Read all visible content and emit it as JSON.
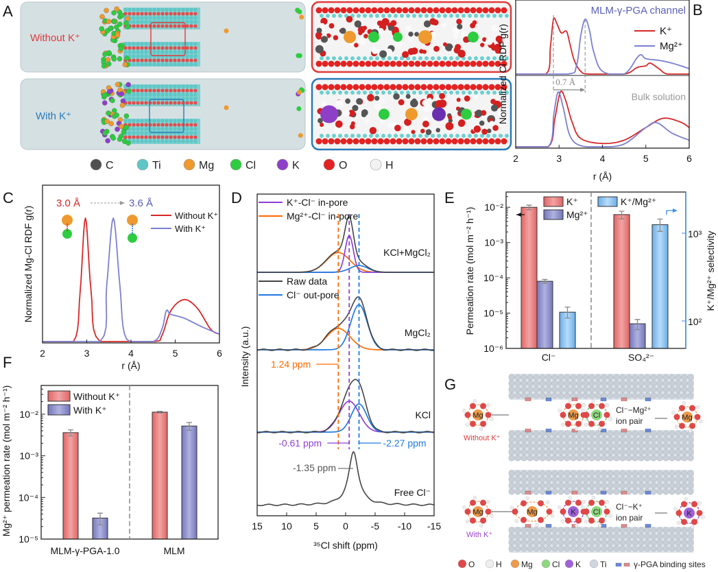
{
  "panel_labels": {
    "a": "A",
    "b": "B",
    "c": "C",
    "d": "D",
    "e": "E",
    "f": "F",
    "g": "G"
  },
  "panel_a": {
    "row_labels": [
      "Without K⁺",
      "With K⁺"
    ],
    "row_colors": [
      "#e03a3a",
      "#2a7ab8"
    ],
    "legend": [
      {
        "label": "C",
        "color": "#505050"
      },
      {
        "label": "Ti",
        "color": "#5ec6c6"
      },
      {
        "label": "Mg",
        "color": "#ee9a2e"
      },
      {
        "label": "Cl",
        "color": "#2ecc40"
      },
      {
        "label": "K",
        "color": "#8e3fc8"
      },
      {
        "label": "O",
        "color": "#e32222"
      },
      {
        "label": "H",
        "color": "#f2f2f2"
      }
    ]
  },
  "chart_data": [
    {
      "id": "B",
      "type": "line",
      "ylabel": "Normalized Cl RDF g(r)",
      "xlabel": "r (Å)",
      "xlim": [
        2,
        6
      ],
      "xticks": [
        "2",
        "3",
        "4",
        "5",
        "6"
      ],
      "annotations": {
        "top": "MLM-γ-PGA channel",
        "bottom": "Bulk solution",
        "shift": "0.7 Å"
      },
      "legend_position": "top-right",
      "series": [
        {
          "name": "K⁺",
          "color": "#d62728",
          "panel": "channel",
          "x": [
            2,
            2.7,
            2.8,
            2.87,
            2.95,
            3.05,
            3.17,
            3.25,
            3.35,
            3.5,
            3.7,
            4.5,
            4.8,
            5.0,
            5.1,
            5.3,
            5.5,
            6
          ],
          "y": [
            0,
            0,
            0.5,
            1.0,
            0.92,
            0.75,
            0.78,
            0.55,
            0.25,
            0.05,
            0,
            0,
            0.12,
            0.15,
            0.2,
            0.1,
            0,
            0
          ]
        },
        {
          "name": "Mg²⁺",
          "color": "#7b7fd0",
          "panel": "channel",
          "x": [
            2,
            3.2,
            3.4,
            3.5,
            3.6,
            3.7,
            3.8,
            4.0,
            4.5,
            4.8,
            4.9,
            5.0,
            5.3,
            5.6,
            6
          ],
          "y": [
            0,
            0,
            0.15,
            0.7,
            1.0,
            0.8,
            0.4,
            0.05,
            0,
            0.3,
            0.35,
            0.28,
            0.25,
            0.2,
            0.1
          ]
        },
        {
          "name": "K⁺",
          "color": "#d62728",
          "panel": "bulk",
          "x": [
            2,
            2.75,
            2.9,
            3.03,
            3.15,
            3.3,
            3.5,
            4.0,
            4.5,
            5.0,
            5.4,
            5.8,
            6
          ],
          "y": [
            0,
            0,
            0.5,
            1.0,
            0.85,
            0.45,
            0.15,
            0.06,
            0.12,
            0.35,
            0.52,
            0.45,
            0.35
          ]
        },
        {
          "name": "Mg²⁺",
          "color": "#7b7fd0",
          "panel": "bulk",
          "x": [
            2,
            2.75,
            2.88,
            2.98,
            3.1,
            3.25,
            3.5,
            4.0,
            4.5,
            5.0,
            5.25,
            5.6,
            6
          ],
          "y": [
            0,
            0,
            0.6,
            1.0,
            0.7,
            0.2,
            0.02,
            0,
            0.05,
            0.35,
            0.44,
            0.25,
            0.12
          ]
        }
      ]
    },
    {
      "id": "C",
      "type": "line",
      "ylabel": "Normalized Mg-Cl RDF g(r)",
      "xlabel": "r (Å)",
      "xlim": [
        2,
        6
      ],
      "xticks": [
        "2",
        "3",
        "4",
        "5",
        "6"
      ],
      "annotations": {
        "peak1": "3.0 Å",
        "peak2": "3.6 Å"
      },
      "legend_position": "top-right",
      "series": [
        {
          "name": "Without K⁺",
          "color": "#d62728",
          "x": [
            2,
            2.7,
            2.85,
            2.97,
            3.1,
            3.3,
            4.5,
            4.7,
            4.9,
            5.2,
            5.5,
            5.8,
            6
          ],
          "y": [
            0,
            0,
            0.4,
            1.0,
            0.4,
            0,
            0,
            0.05,
            0.25,
            0.34,
            0.27,
            0.1,
            0.06
          ]
        },
        {
          "name": "With K⁺",
          "color": "#7b7fd0",
          "x": [
            2,
            3.3,
            3.45,
            3.6,
            3.75,
            3.9,
            4.5,
            4.7,
            4.8,
            4.9,
            5.2,
            5.6,
            6
          ],
          "y": [
            0,
            0,
            0.45,
            1.0,
            0.45,
            0.02,
            0,
            0.1,
            0.25,
            0.22,
            0.19,
            0.12,
            0.06
          ]
        }
      ]
    },
    {
      "id": "D",
      "type": "line",
      "ylabel": "Intensity (a.u.)",
      "xlabel": "³⁵Cl shift (ppm)",
      "xlim": [
        15,
        -15
      ],
      "xticks": [
        "15",
        "10",
        "5",
        "0",
        "-5",
        "-10",
        "-15"
      ],
      "legend": [
        {
          "name": "K⁺-Cl⁻ in-pore",
          "color": "#8e3fd6"
        },
        {
          "name": "Mg²⁺-Cl⁻ in-pore",
          "color": "#ff6a00"
        },
        {
          "name": "Raw data",
          "color": "#444444"
        },
        {
          "name": "Cl⁻ out-pore",
          "color": "#1f7ae0"
        }
      ],
      "reference_lines": [
        {
          "value": 1.24,
          "label": "1.24 ppm",
          "color": "#ff6a00"
        },
        {
          "value": -0.61,
          "label": "-0.61 ppm",
          "color": "#8e3fd6"
        },
        {
          "value": -2.27,
          "label": "-2.27 ppm",
          "color": "#1f7ae0"
        }
      ],
      "free_peak_label": "-1.35 ppm",
      "spectra": [
        {
          "name": "KCl+MgCl₂",
          "components": [
            {
              "type": "Mg²⁺-Cl⁻ in-pore",
              "center": 1.24,
              "height": 0.35,
              "width": 2.0
            },
            {
              "type": "K⁺-Cl⁻ in-pore",
              "center": -0.61,
              "height": 0.65,
              "width": 0.7
            },
            {
              "type": "Cl⁻ out-pore",
              "center": -2.27,
              "height": 0.12,
              "width": 1.5
            }
          ]
        },
        {
          "name": "MgCl₂",
          "components": [
            {
              "type": "Mg²⁺-Cl⁻ in-pore",
              "center": 1.24,
              "height": 0.38,
              "width": 2.0
            },
            {
              "type": "Cl⁻ out-pore",
              "center": -2.27,
              "height": 0.8,
              "width": 1.4
            }
          ]
        },
        {
          "name": "KCl",
          "components": [
            {
              "type": "K⁺-Cl⁻ in-pore",
              "center": -0.61,
              "height": 0.55,
              "width": 1.7
            },
            {
              "type": "Cl⁻ out-pore",
              "center": -2.27,
              "height": 0.5,
              "width": 1.3
            }
          ]
        },
        {
          "name": "Free Cl⁻",
          "components": [
            {
              "type": "Raw data",
              "center": -1.35,
              "height": 0.95,
              "width": 1.0
            }
          ]
        }
      ]
    },
    {
      "id": "E",
      "type": "bar",
      "ylabel": "Permeation rate (mol m⁻² h⁻¹)",
      "ylabel_right": "K⁺/Mg²⁺ selectivity",
      "yscale": "log",
      "ylim": [
        1e-06,
        0.027
      ],
      "yticks": [
        "10⁻⁶",
        "10⁻⁵",
        "10⁻⁴",
        "10⁻³",
        "10⁻²"
      ],
      "ylim_right": [
        49,
        2950
      ],
      "yticks_right": [
        "10²",
        "10³"
      ],
      "categories": [
        "Cl⁻",
        "SO₄²⁻"
      ],
      "legend_position": "top",
      "series": [
        {
          "name": "K⁺",
          "color": "#e77a7a",
          "axis": "left",
          "values": [
            0.01,
            0.0062
          ],
          "errors": [
            0.0015,
            0.0015
          ]
        },
        {
          "name": "Mg²⁺",
          "color": "#8a8cc8",
          "axis": "left",
          "values": [
            8e-05,
            5e-06
          ],
          "errors": [
            1e-05,
            1.6e-06
          ]
        },
        {
          "name": "K⁺/Mg²⁺",
          "color": "#7ab8f0",
          "axis": "right",
          "values": [
            126,
            1250
          ],
          "errors": [
            18,
            200
          ]
        }
      ]
    },
    {
      "id": "F",
      "type": "bar",
      "ylabel": "Mg²⁺ permeation rate (mol m⁻² h⁻¹)",
      "yscale": "log",
      "ylim": [
        1e-05,
        0.049
      ],
      "yticks": [
        "10⁻⁵",
        "10⁻⁴",
        "10⁻³",
        "10⁻²"
      ],
      "categories": [
        "MLM-γ-PGA-1.0",
        "MLM"
      ],
      "legend_position": "top-left",
      "series": [
        {
          "name": "Without K⁺",
          "color": "#e77a7a",
          "values": [
            0.0036,
            0.0112
          ],
          "errors": [
            0.0006,
            0.0005
          ]
        },
        {
          "name": "With K⁺",
          "color": "#8a8cc8",
          "values": [
            3.2e-05,
            0.0052
          ],
          "errors": [
            1e-05,
            0.0011
          ]
        }
      ]
    }
  ],
  "panel_g": {
    "rows": [
      {
        "label": "Without K⁺",
        "color": "#e03a3a",
        "pair_label": [
          "Cl⁻−Mg²⁺",
          "ion pair"
        ]
      },
      {
        "label": "With K⁺",
        "color": "#9a45c8",
        "pair_label": [
          "Cl⁻−K⁺",
          "ion pair"
        ]
      }
    ],
    "ion_labels": {
      "mg": "Mg",
      "cl": "Cl",
      "k": "K"
    },
    "legend": [
      {
        "label": "O",
        "color": "#e04848"
      },
      {
        "label": "H",
        "color": "#eeeeee"
      },
      {
        "label": "Mg",
        "color": "#ee9a4a"
      },
      {
        "label": "Cl",
        "color": "#8ed87e"
      },
      {
        "label": "K",
        "color": "#a060d8"
      },
      {
        "label": "Ti",
        "color": "#cfd6de"
      },
      {
        "label": "γ-PGA binding sites",
        "color": "#6a8ad8"
      }
    ]
  }
}
